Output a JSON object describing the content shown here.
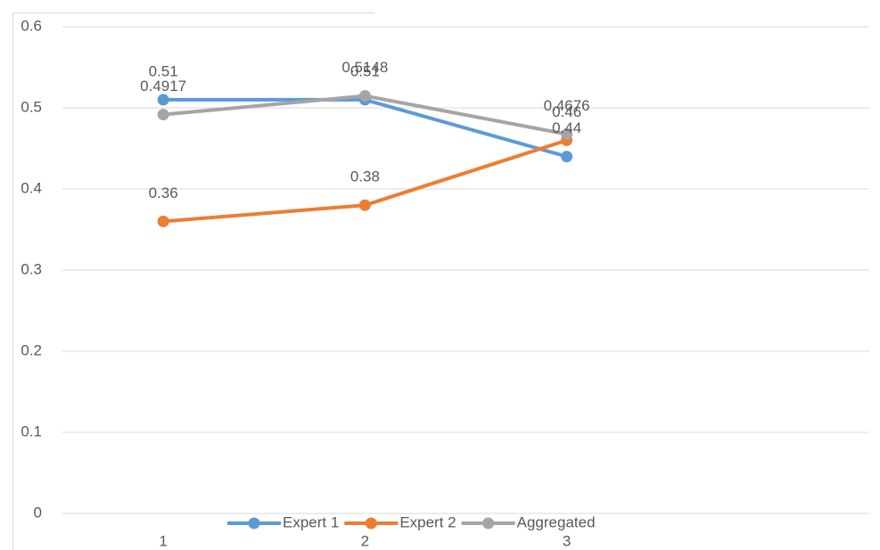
{
  "chart_data": {
    "type": "line",
    "categories": [
      "1",
      "2",
      "3",
      null
    ],
    "series": [
      {
        "name": "Expert 1",
        "color": "#5b9bd5",
        "values": [
          0.51,
          0.51,
          0.44,
          null
        ]
      },
      {
        "name": "Expert 2",
        "color": "#ed7d31",
        "values": [
          0.36,
          0.38,
          0.46,
          null
        ]
      },
      {
        "name": "Aggregated",
        "color": "#a5a5a5",
        "values": [
          0.4917,
          0.5148,
          0.4676,
          null
        ]
      }
    ],
    "ylim": [
      0,
      0.6
    ],
    "yticks": [
      0,
      0.1,
      0.2,
      0.3,
      0.4,
      0.5,
      0.6
    ],
    "grid": true,
    "legend": "bottom",
    "data_labels": true
  }
}
